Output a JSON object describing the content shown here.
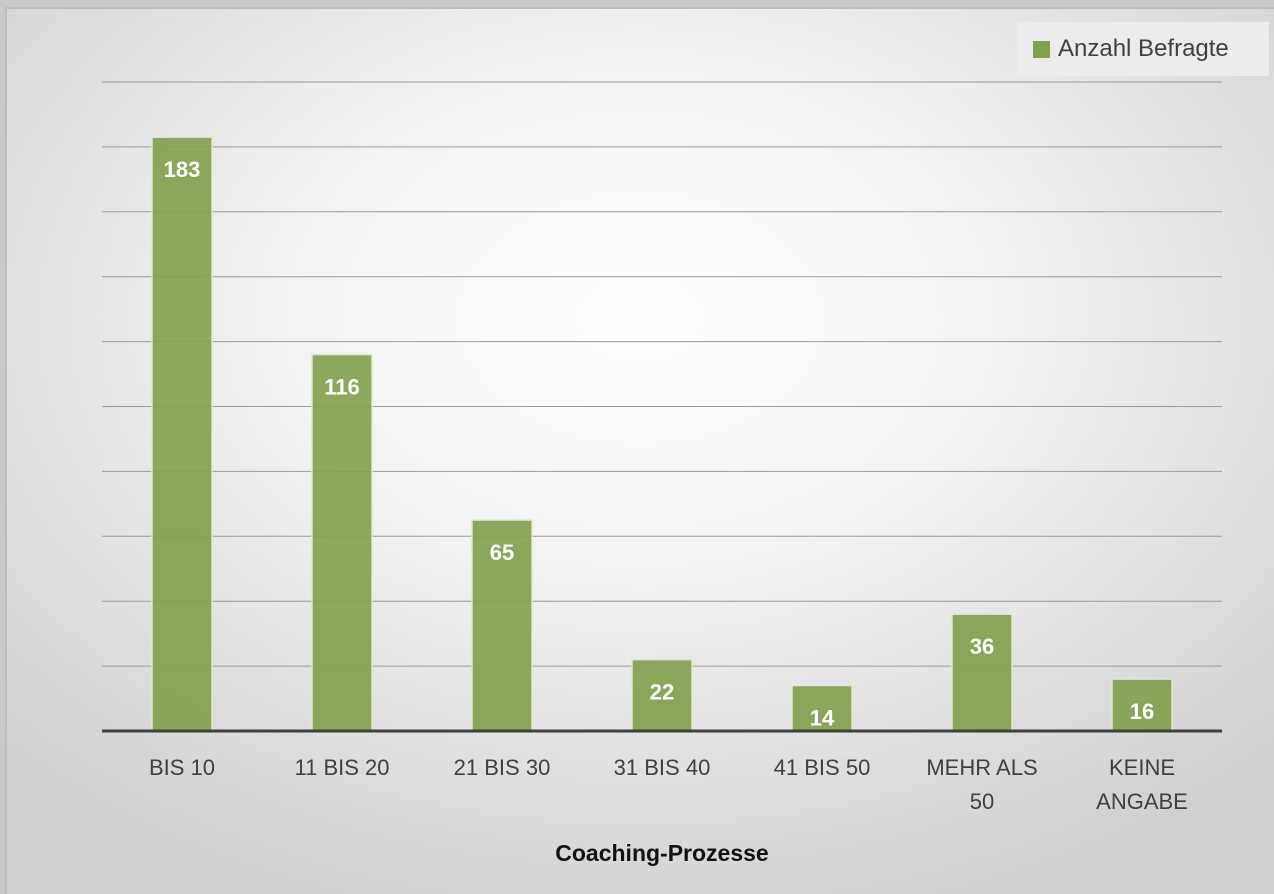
{
  "chart_data": {
    "type": "bar",
    "categories": [
      [
        "BIS 10"
      ],
      [
        "11 BIS 20"
      ],
      [
        "21 BIS 30"
      ],
      [
        "31 BIS 40"
      ],
      [
        "41 BIS 50"
      ],
      [
        "MEHR ALS",
        "50"
      ],
      [
        "KEINE",
        "ANGABE"
      ]
    ],
    "series": [
      {
        "name": "Anzahl Befragte",
        "values": [
          183,
          116,
          65,
          22,
          14,
          36,
          16
        ],
        "color": "#83a04f"
      }
    ],
    "xlabel": "Coaching-Prozesse",
    "ylabel": "",
    "ylim": [
      0,
      200
    ],
    "grid": true,
    "legend": "top-right"
  }
}
